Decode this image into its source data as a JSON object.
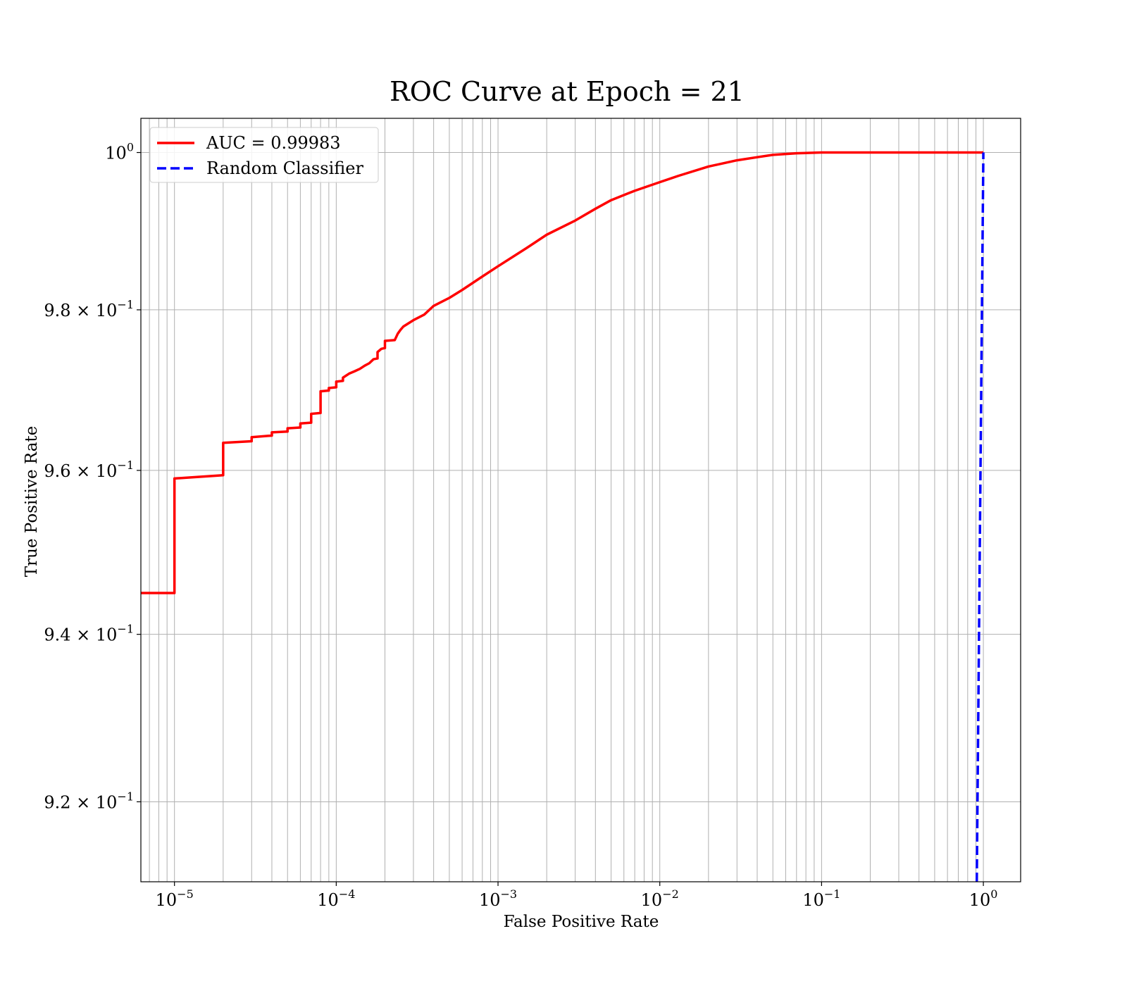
{
  "chart_data": {
    "type": "line",
    "title": "ROC Curve at Epoch = 21",
    "xlabel": "False Positive Rate",
    "ylabel": "True Positive Rate",
    "xscale": "log",
    "yscale": "log",
    "xlim": [
      6.2e-06,
      1.7
    ],
    "ylim": [
      0.9106,
      1.0044
    ],
    "grid": true,
    "legend_position": "top-left",
    "x_ticks": [
      {
        "value": 1e-05,
        "base": "10",
        "exp": "−5"
      },
      {
        "value": 0.0001,
        "base": "10",
        "exp": "−4"
      },
      {
        "value": 0.001,
        "base": "10",
        "exp": "−3"
      },
      {
        "value": 0.01,
        "base": "10",
        "exp": "−2"
      },
      {
        "value": 0.1,
        "base": "10",
        "exp": "−1"
      },
      {
        "value": 1,
        "base": "10",
        "exp": "0"
      }
    ],
    "y_ticks": [
      {
        "value": 1.0,
        "base": "10",
        "exp": "0"
      },
      {
        "value": 0.98,
        "base": "9.8 × 10",
        "exp": "−1"
      },
      {
        "value": 0.96,
        "base": "9.6 × 10",
        "exp": "−1"
      },
      {
        "value": 0.94,
        "base": "9.4 × 10",
        "exp": "−1"
      },
      {
        "value": 0.92,
        "base": "9.2 × 10",
        "exp": "−1"
      }
    ],
    "series": [
      {
        "name": "AUC = 0.99983",
        "color": "#ff0000",
        "style": "solid",
        "x": [
          6e-06,
          1e-05,
          1e-05,
          2e-05,
          2e-05,
          3e-05,
          3e-05,
          4e-05,
          4e-05,
          5e-05,
          5e-05,
          6e-05,
          6e-05,
          7e-05,
          7e-05,
          8e-05,
          8e-05,
          9e-05,
          9e-05,
          0.0001,
          0.0001,
          0.00011,
          0.00011,
          0.00012,
          0.00013,
          0.00014,
          0.00015,
          0.00016,
          0.00017,
          0.00018,
          0.00018,
          0.00019,
          0.0002,
          0.0002,
          0.00023,
          0.00024,
          0.00025,
          0.00026,
          0.0003,
          0.00035,
          0.0004,
          0.0005,
          0.0006,
          0.0008,
          0.001,
          0.0015,
          0.002,
          0.003,
          0.004,
          0.005,
          0.007,
          0.01,
          0.013,
          0.02,
          0.03,
          0.04,
          0.05,
          0.07,
          0.1,
          0.12,
          0.3,
          1.0
        ],
        "y": [
          0.945,
          0.945,
          0.959,
          0.9594,
          0.9634,
          0.9636,
          0.9641,
          0.9643,
          0.9647,
          0.9648,
          0.9652,
          0.9653,
          0.9658,
          0.9659,
          0.967,
          0.9671,
          0.9698,
          0.9699,
          0.9702,
          0.9703,
          0.971,
          0.9711,
          0.9715,
          0.972,
          0.9723,
          0.9726,
          0.973,
          0.9733,
          0.9738,
          0.9739,
          0.9747,
          0.9751,
          0.9752,
          0.9761,
          0.9762,
          0.977,
          0.9775,
          0.9779,
          0.9787,
          0.9794,
          0.9805,
          0.9815,
          0.9825,
          0.9842,
          0.9855,
          0.9878,
          0.9895,
          0.9913,
          0.9928,
          0.9939,
          0.9951,
          0.9962,
          0.997,
          0.9982,
          0.999,
          0.9994,
          0.9997,
          0.9999,
          1.0,
          1.0,
          1.0,
          1.0
        ]
      },
      {
        "name": "Random Classifier",
        "color": "#0000ff",
        "style": "dashed",
        "x": [
          0.9106,
          1.0
        ],
        "y": [
          0.9106,
          1.0
        ]
      }
    ]
  }
}
